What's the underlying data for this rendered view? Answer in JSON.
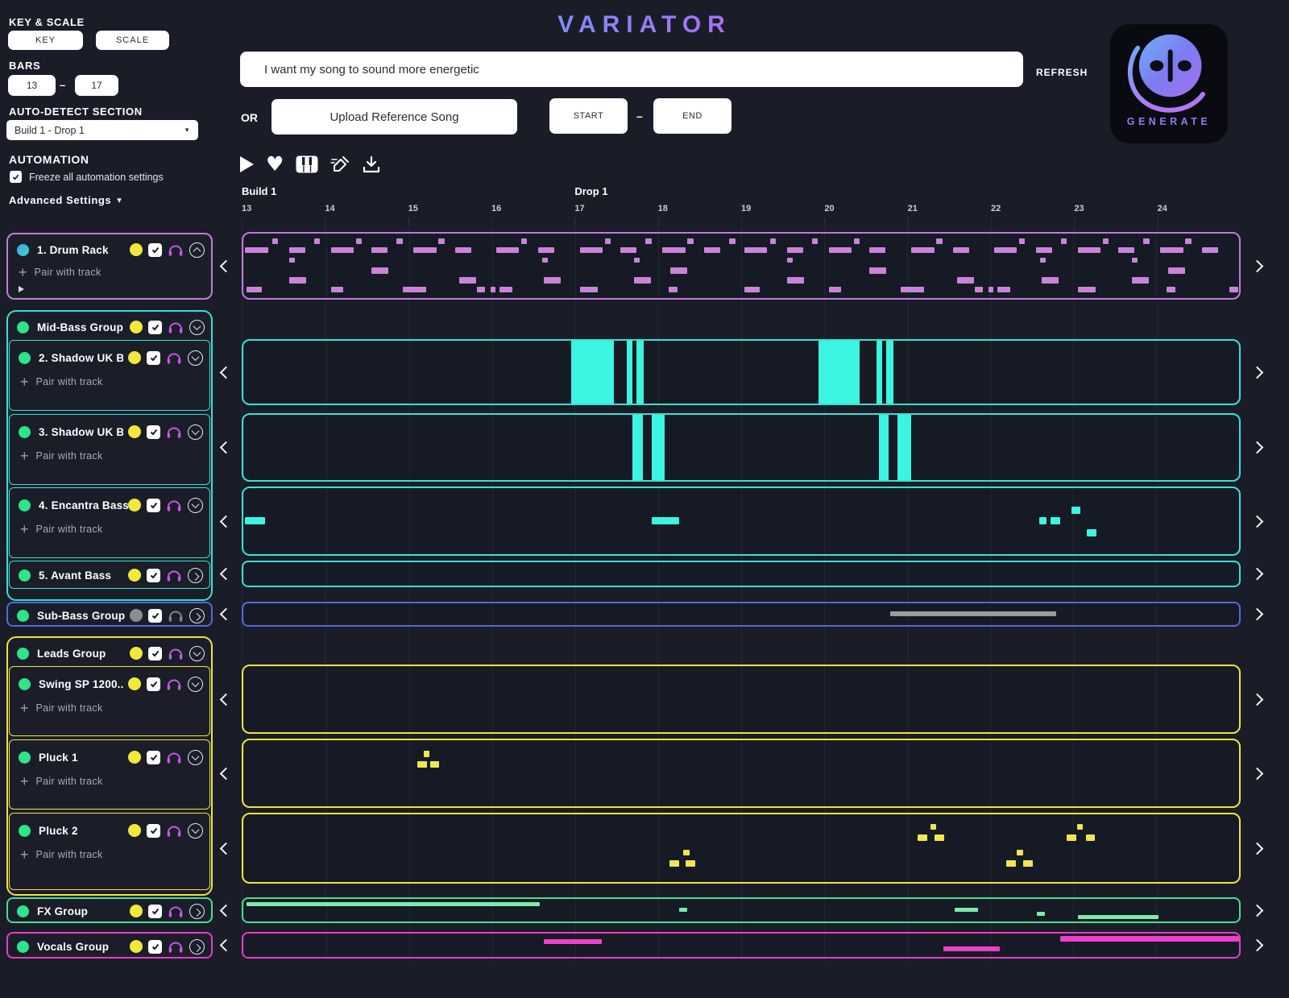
{
  "app": {
    "title": "VARIATOR"
  },
  "ui": {
    "pair_label": "Pair with track"
  },
  "controls": {
    "key_scale_label": "KEY & SCALE",
    "key": "KEY",
    "scale": "SCALE",
    "bars_label": "BARS",
    "bars_start": "13",
    "bars_dash": "–",
    "bars_end": "17",
    "autodetect_label": "AUTO-DETECT SECTION",
    "autodetect_value": "Build 1 - Drop 1",
    "dropdown_caret": "▼",
    "automation_label": "AUTOMATION",
    "freeze_label": "Freeze all automation settings",
    "advanced_label": "Advanced Settings",
    "advanced_caret": "▾"
  },
  "prompt": {
    "value": "I want my song to sound more energetic",
    "refresh": "REFRESH",
    "or": "OR",
    "upload": "Upload Reference Song",
    "start": "START",
    "dash": "–",
    "end": "END"
  },
  "generate": {
    "label": "GENERATE"
  },
  "timeline": {
    "sections": [
      {
        "label": "Build 1"
      },
      {
        "label": "Drop 1"
      }
    ],
    "bars": [
      "13",
      "14",
      "15",
      "16",
      "17",
      "18",
      "19",
      "20",
      "21",
      "22",
      "23",
      "24"
    ]
  },
  "tracks": {
    "drum": {
      "name": "1. Drum Rack"
    },
    "midbass": {
      "name": "Mid-Bass Group"
    },
    "shadow2": {
      "name": "2. Shadow UK B..."
    },
    "shadow3": {
      "name": "3. Shadow UK B..."
    },
    "encantra": {
      "name": "4. Encantra Bass"
    },
    "avant": {
      "name": "5. Avant Bass"
    },
    "subbass": {
      "name": "Sub-Bass Group"
    },
    "leads": {
      "name": "Leads Group"
    },
    "swing": {
      "name": "Swing SP 1200..."
    },
    "pluck1": {
      "name": "Pluck 1"
    },
    "pluck2": {
      "name": "Pluck 2"
    },
    "fx": {
      "name": "FX Group"
    },
    "vocals": {
      "name": "Vocals Group"
    }
  },
  "colors": {
    "drum_note": "#CB83D9",
    "bass_note": "#3BF5E2",
    "sub_note": "#9B9B9B",
    "lead_note": "#F2E455",
    "fx_note": "#7DEBA9",
    "vocal_note": "#ED3FCB"
  },
  "lanes": {
    "drum": {
      "note_color": "#CB83D9",
      "notes": [
        [
          2.9,
          8,
          0.6,
          8
        ],
        [
          7.1,
          8,
          0.6,
          8
        ],
        [
          11.3,
          8,
          0.6,
          8
        ],
        [
          15.4,
          8,
          0.6,
          8
        ],
        [
          19.6,
          8,
          0.6,
          8
        ],
        [
          27.9,
          8,
          0.6,
          8
        ],
        [
          36.3,
          8,
          0.6,
          8
        ],
        [
          40.4,
          8,
          0.6,
          8
        ],
        [
          44.6,
          8,
          0.6,
          8
        ],
        [
          48.8,
          8,
          0.6,
          8
        ],
        [
          52.9,
          8,
          0.6,
          8
        ],
        [
          57.1,
          8,
          0.6,
          8
        ],
        [
          61.3,
          8,
          0.6,
          8
        ],
        [
          69.6,
          8,
          0.6,
          8
        ],
        [
          77.9,
          8,
          0.6,
          8
        ],
        [
          82.1,
          8,
          0.6,
          8
        ],
        [
          86.3,
          8,
          0.6,
          8
        ],
        [
          90.4,
          8,
          0.6,
          8
        ],
        [
          94.6,
          8,
          0.6,
          8
        ],
        [
          0.2,
          21,
          2.3,
          9
        ],
        [
          4.6,
          21,
          1.6,
          9
        ],
        [
          8.8,
          21,
          2.3,
          9
        ],
        [
          12.9,
          21,
          1.6,
          9
        ],
        [
          17.1,
          21,
          2.3,
          9
        ],
        [
          21.3,
          21,
          1.6,
          9
        ],
        [
          25.4,
          21,
          2.3,
          9
        ],
        [
          29.6,
          21,
          1.6,
          9
        ],
        [
          33.8,
          21,
          2.3,
          9
        ],
        [
          37.9,
          21,
          1.6,
          9
        ],
        [
          42.1,
          21,
          2.3,
          9
        ],
        [
          46.3,
          21,
          1.6,
          9
        ],
        [
          50.3,
          21,
          2.3,
          9
        ],
        [
          54.6,
          21,
          1.6,
          9
        ],
        [
          58.8,
          21,
          2.3,
          9
        ],
        [
          62.9,
          21,
          1.6,
          9
        ],
        [
          67.1,
          21,
          2.3,
          9
        ],
        [
          71.3,
          21,
          1.6,
          9
        ],
        [
          75.4,
          21,
          2.3,
          9
        ],
        [
          79.6,
          21,
          1.6,
          9
        ],
        [
          83.8,
          21,
          2.3,
          9
        ],
        [
          87.9,
          21,
          1.6,
          9
        ],
        [
          92.1,
          21,
          2.3,
          9
        ],
        [
          96.3,
          21,
          1.6,
          9
        ],
        [
          4.6,
          37,
          0.6,
          8
        ],
        [
          30.0,
          37,
          0.6,
          8
        ],
        [
          39.2,
          37,
          0.6,
          8
        ],
        [
          54.6,
          37,
          0.6,
          8
        ],
        [
          80.0,
          37,
          0.6,
          8
        ],
        [
          89.2,
          37,
          0.6,
          8
        ],
        [
          12.9,
          53,
          1.7,
          9
        ],
        [
          42.9,
          53,
          1.7,
          9
        ],
        [
          62.9,
          53,
          1.7,
          9
        ],
        [
          92.9,
          53,
          1.7,
          9
        ],
        [
          4.6,
          68,
          1.7,
          9
        ],
        [
          21.7,
          68,
          1.7,
          9
        ],
        [
          30.2,
          68,
          1.7,
          9
        ],
        [
          39.2,
          68,
          1.7,
          9
        ],
        [
          54.6,
          68,
          1.7,
          9
        ],
        [
          71.7,
          68,
          1.7,
          9
        ],
        [
          80.2,
          68,
          1.7,
          9
        ],
        [
          89.2,
          68,
          1.7,
          9
        ],
        [
          0.3,
          82,
          1.6,
          9
        ],
        [
          8.8,
          82,
          1.2,
          9
        ],
        [
          16.0,
          82,
          2.4,
          9
        ],
        [
          23.5,
          82,
          0.8,
          9
        ],
        [
          24.8,
          82,
          0.5,
          9
        ],
        [
          25.7,
          82,
          1.3,
          9
        ],
        [
          33.8,
          82,
          1.8,
          9
        ],
        [
          42.7,
          82,
          0.9,
          9
        ],
        [
          50.3,
          82,
          1.6,
          9
        ],
        [
          58.8,
          82,
          1.2,
          9
        ],
        [
          66.0,
          82,
          2.4,
          9
        ],
        [
          73.5,
          82,
          0.8,
          9
        ],
        [
          74.8,
          82,
          0.5,
          9
        ],
        [
          75.7,
          82,
          1.3,
          9
        ],
        [
          83.8,
          82,
          1.8,
          9
        ],
        [
          92.7,
          82,
          0.9,
          9
        ],
        [
          99.0,
          82,
          0.9,
          9
        ]
      ]
    },
    "shadow2": {
      "note_color": "#3BF5E2",
      "notes": [
        [
          32.9,
          0,
          4.3,
          100
        ],
        [
          38.5,
          0,
          0.55,
          100
        ],
        [
          39.5,
          0,
          0.7,
          100
        ],
        [
          57.8,
          0,
          4.1,
          100
        ],
        [
          63.6,
          0,
          0.55,
          100
        ],
        [
          64.6,
          0,
          0.7,
          100
        ]
      ]
    },
    "shadow3": {
      "note_color": "#3BF5E2",
      "notes": [
        [
          39.1,
          0,
          1.0,
          100
        ],
        [
          41.0,
          0,
          1.35,
          100
        ],
        [
          63.8,
          0,
          1.0,
          100
        ],
        [
          65.7,
          0,
          1.35,
          100
        ]
      ]
    },
    "encantra": {
      "note_color": "#3BF5E2",
      "notes": [
        [
          0.2,
          44,
          2.0,
          11
        ],
        [
          41.0,
          44,
          2.8,
          11
        ],
        [
          79.9,
          44,
          0.8,
          11
        ],
        [
          81.1,
          44,
          0.9,
          11
        ],
        [
          83.2,
          28,
          0.9,
          11
        ],
        [
          84.7,
          62,
          1.0,
          11
        ]
      ]
    },
    "avant": {
      "note_color": "#3BF5E2",
      "notes": []
    },
    "subbass": {
      "note_color": "#9B9B9B",
      "notes": [
        [
          65.0,
          36,
          16.6,
          24
        ]
      ]
    },
    "swing": {
      "note_color": "#F2E455",
      "notes": []
    },
    "pluck1": {
      "note_color": "#F2E455",
      "notes": [
        [
          18.1,
          16,
          0.6,
          10
        ],
        [
          17.5,
          32,
          0.95,
          10
        ],
        [
          18.75,
          32,
          0.95,
          10
        ]
      ]
    },
    "pluck2": {
      "note_color": "#F2E455",
      "notes": [
        [
          44.2,
          52,
          0.6,
          9
        ],
        [
          42.8,
          68,
          0.95,
          9
        ],
        [
          44.4,
          68,
          0.95,
          9
        ],
        [
          69.0,
          14,
          0.6,
          9
        ],
        [
          67.7,
          30,
          0.95,
          9
        ],
        [
          69.4,
          30,
          0.95,
          9
        ],
        [
          77.7,
          52,
          0.6,
          9
        ],
        [
          76.6,
          68,
          0.95,
          9
        ],
        [
          78.3,
          68,
          0.95,
          9
        ],
        [
          83.7,
          14,
          0.6,
          9
        ],
        [
          82.7,
          30,
          0.95,
          9
        ],
        [
          84.6,
          30,
          0.95,
          9
        ]
      ]
    },
    "fx": {
      "note_color": "#7DEBA9",
      "notes": [
        [
          0.3,
          14,
          29.5,
          18
        ],
        [
          43.8,
          40,
          0.8,
          18
        ],
        [
          71.4,
          38,
          2.4,
          18
        ],
        [
          79.7,
          58,
          0.8,
          18
        ],
        [
          83.8,
          72,
          8.1,
          16
        ]
      ]
    },
    "vocals": {
      "note_color": "#ED3FCB",
      "notes": [
        [
          30.2,
          24,
          5.8,
          20
        ],
        [
          70.3,
          55,
          5.7,
          20
        ],
        [
          82.0,
          10,
          18.0,
          24
        ]
      ]
    }
  }
}
